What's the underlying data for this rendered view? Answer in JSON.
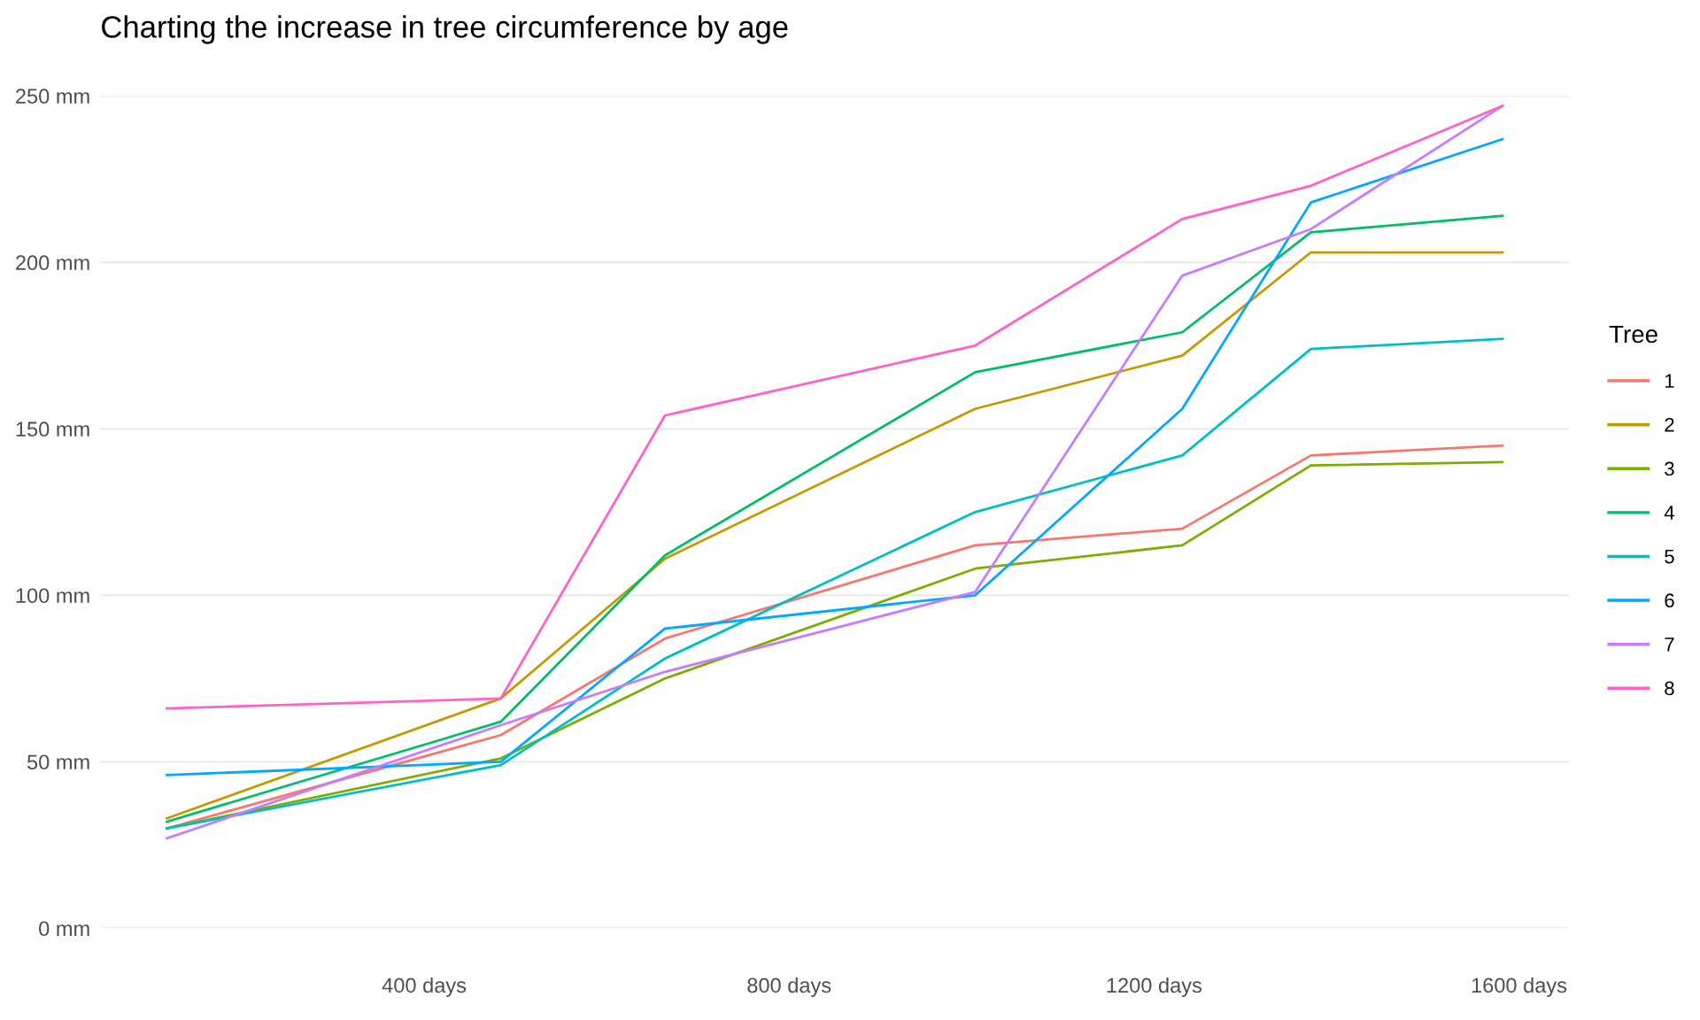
{
  "chart_data": {
    "type": "line",
    "title": "Charting the increase in tree circumference by age",
    "x": [
      118,
      484,
      664,
      1004,
      1231,
      1372,
      1582
    ],
    "series": [
      {
        "name": "1",
        "color": "#f8766d",
        "values": [
          30,
          58,
          87,
          115,
          120,
          142,
          145
        ]
      },
      {
        "name": "2",
        "color": "#c49a00",
        "values": [
          33,
          69,
          111,
          156,
          172,
          203,
          203
        ]
      },
      {
        "name": "3",
        "color": "#7cae00",
        "values": [
          30,
          51,
          75,
          108,
          115,
          139,
          140
        ]
      },
      {
        "name": "4",
        "color": "#00be67",
        "values": [
          32,
          62,
          112,
          167,
          179,
          209,
          214
        ]
      },
      {
        "name": "5",
        "color": "#00bfc4",
        "values": [
          30,
          49,
          81,
          125,
          142,
          174,
          177
        ]
      },
      {
        "name": "6",
        "color": "#00a9ff",
        "values": [
          46,
          50,
          90,
          100,
          156,
          218,
          237
        ]
      },
      {
        "name": "7",
        "color": "#c77cff",
        "values": [
          27,
          61,
          77,
          101,
          196,
          210,
          247
        ]
      },
      {
        "name": "8",
        "color": "#ff61cc",
        "values": [
          66,
          69,
          154,
          175,
          213,
          223,
          247
        ]
      }
    ],
    "legend_title": "Tree",
    "legend": "right",
    "grid": "y",
    "marker": "none",
    "line_style": "solid",
    "xlim": [
      45,
      1655
    ],
    "ylim": [
      0,
      250
    ],
    "xticks": [
      {
        "value": 400,
        "label": "400 days"
      },
      {
        "value": 800,
        "label": "800 days"
      },
      {
        "value": 1200,
        "label": "1200 days"
      },
      {
        "value": 1600,
        "label": "1600 days"
      }
    ],
    "yticks": [
      {
        "value": 0,
        "label": "0 mm"
      },
      {
        "value": 50,
        "label": "50 mm"
      },
      {
        "value": 100,
        "label": "100 mm"
      },
      {
        "value": 150,
        "label": "150 mm"
      },
      {
        "value": 200,
        "label": "200 mm"
      },
      {
        "value": 250,
        "label": "250 mm"
      }
    ]
  }
}
